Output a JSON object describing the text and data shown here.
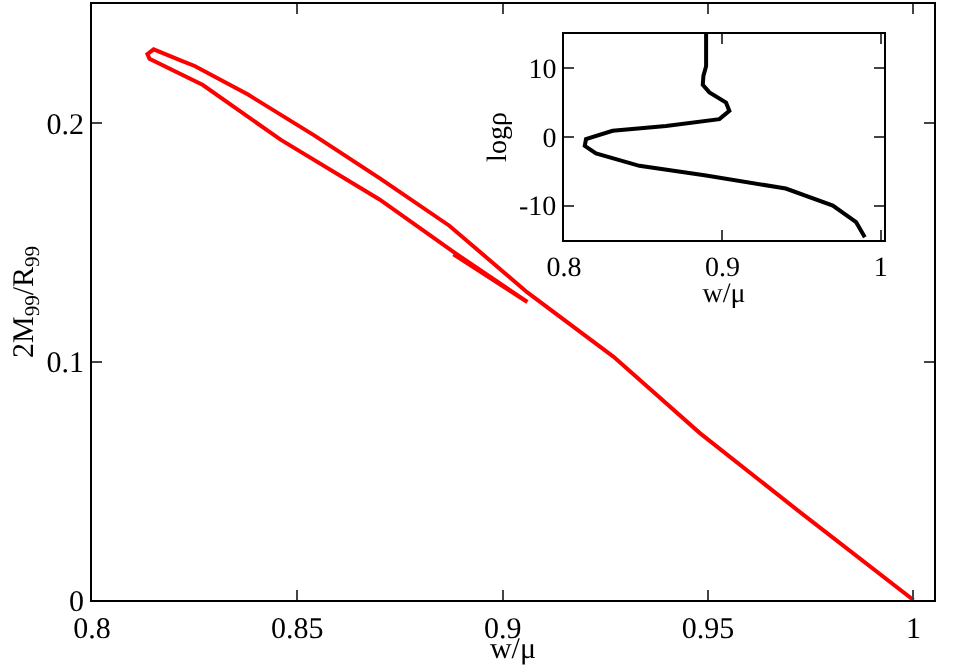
{
  "chart_data": [
    {
      "type": "line",
      "xlabel": "w/μ",
      "ylabel": "2M$_{99}$/R$_{99}$",
      "xlim": [
        0.8,
        1.005
      ],
      "ylim": [
        0,
        0.25
      ],
      "xticks": [
        0.8,
        0.85,
        0.9,
        0.95,
        1
      ],
      "yticks": [
        0,
        0.1,
        0.2
      ],
      "series": [
        {
          "color": "#ff0000",
          "x": [
            1.0,
            0.973,
            0.948,
            0.927,
            0.906,
            0.887,
            0.87,
            0.854,
            0.838,
            0.825,
            0.822,
            0.815,
            0.8135,
            0.814,
            0.827,
            0.846,
            0.87,
            0.888,
            0.906,
            0.888
          ],
          "values": [
            0,
            0.036,
            0.07,
            0.102,
            0.129,
            0.157,
            0.177,
            0.195,
            0.212,
            0.224,
            0.226,
            0.231,
            0.229,
            0.227,
            0.216,
            0.193,
            0.168,
            0.146,
            0.125,
            0.145
          ]
        }
      ]
    },
    {
      "type": "line",
      "xlabel": "w/μ",
      "ylabel": "logρ",
      "xlim": [
        0.8,
        1.002
      ],
      "ylim": [
        -15,
        15
      ],
      "xticks": [
        0.8,
        0.9,
        1
      ],
      "yticks": [
        -10,
        0,
        10
      ],
      "series": [
        {
          "color": "#000000",
          "x": [
            0.8897,
            0.8897,
            0.888,
            0.8876,
            0.8918,
            0.9023,
            0.9044,
            0.8981,
            0.8644,
            0.8307,
            0.8139,
            0.8131,
            0.8202,
            0.8476,
            0.8897,
            0.94,
            0.9697,
            0.9844,
            0.9899
          ],
          "values": [
            15,
            10.3,
            8.9,
            7.6,
            6.5,
            5.0,
            3.8,
            2.6,
            1.6,
            0.9,
            -0.3,
            -1.3,
            -2.4,
            -4.2,
            -5.6,
            -7.5,
            -10.0,
            -12.4,
            -14.6
          ]
        }
      ]
    }
  ]
}
